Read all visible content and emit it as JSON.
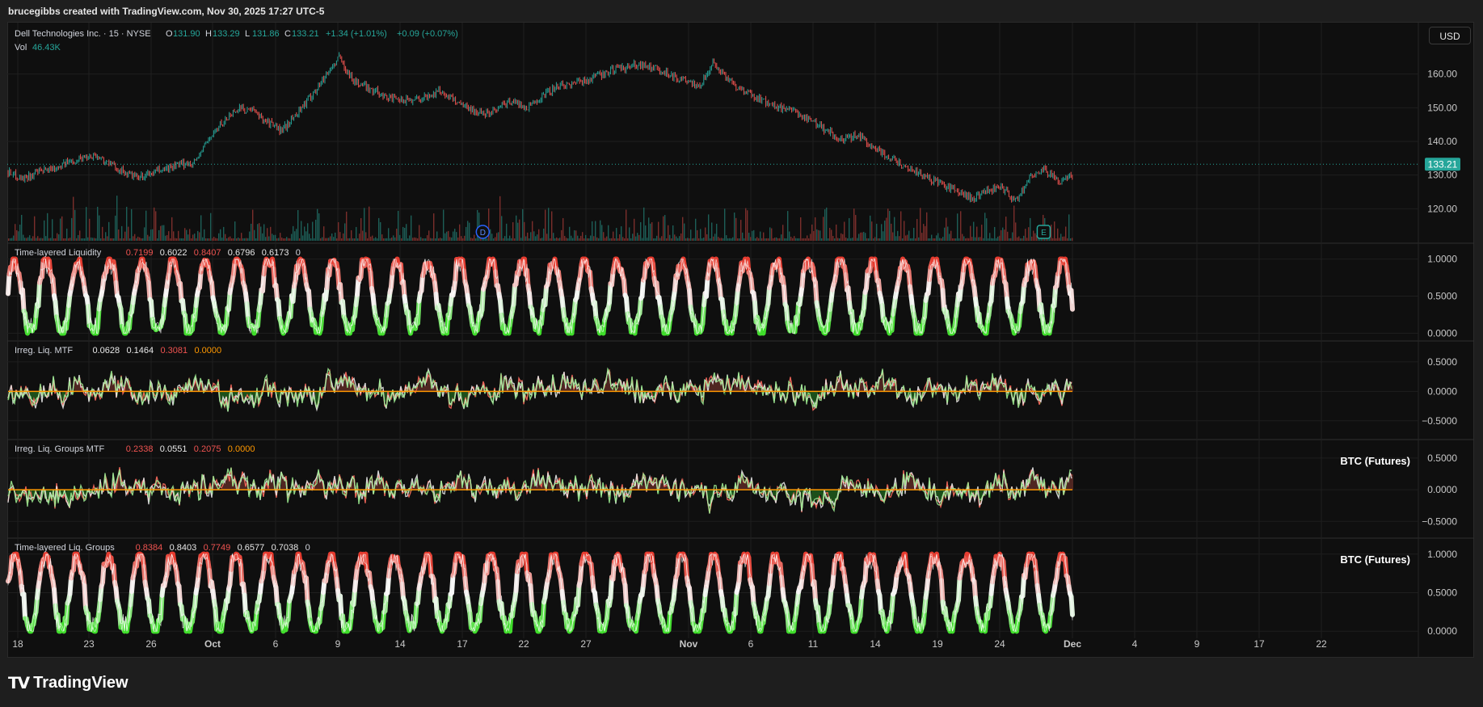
{
  "header": {
    "credit": "brucegibbs created with TradingView.com, Nov 30, 2025 17:27 UTC-5"
  },
  "currency_button": "USD",
  "footer_logo": "TradingView",
  "icons": {
    "logo": "tradingview-logo-icon"
  },
  "colors": {
    "bg": "#0f0f0f",
    "grid": "#1f1f1f",
    "up": "#26a69a",
    "down": "#ef5350",
    "green": "#3fdd2a",
    "red": "#e53a2e",
    "orange": "#ff9800",
    "white": "#e8e8e8",
    "price_line": "#26a69a"
  },
  "chart_data": [
    {
      "type": "candlestick",
      "title": "Dell Technologies Inc. · 15 · NYSE",
      "ohlc_legend": {
        "O": "131.90",
        "H": "133.29",
        "L": "131.86",
        "C": "133.21",
        "change": "+1.34 (+1.01%)",
        "after": "+0.09 (+0.07%)"
      },
      "volume_label": "Vol",
      "volume_value": "46.43K",
      "last_price": "133.21",
      "y_ticks": [
        "160.00",
        "150.00",
        "140.00",
        "130.00",
        "120.00"
      ],
      "ylim": [
        110,
        170
      ],
      "x_range": [
        "2025-09-18",
        "2025-12-01"
      ],
      "close_series": [
        [
          "2025-09-18",
          131
        ],
        [
          "2025-09-19",
          129
        ],
        [
          "2025-09-21",
          132
        ],
        [
          "2025-09-23",
          135
        ],
        [
          "2025-09-24",
          136
        ],
        [
          "2025-09-26",
          131
        ],
        [
          "2025-09-27",
          129
        ],
        [
          "2025-09-29",
          132
        ],
        [
          "2025-10-01",
          134
        ],
        [
          "2025-10-02",
          141
        ],
        [
          "2025-10-03",
          146
        ],
        [
          "2025-10-04",
          150
        ],
        [
          "2025-10-05",
          149
        ],
        [
          "2025-10-07",
          143
        ],
        [
          "2025-10-08",
          148
        ],
        [
          "2025-10-09",
          153
        ],
        [
          "2025-10-11",
          165
        ],
        [
          "2025-10-12",
          158
        ],
        [
          "2025-10-13",
          156
        ],
        [
          "2025-10-15",
          152
        ],
        [
          "2025-10-17",
          153
        ],
        [
          "2025-10-18",
          155
        ],
        [
          "2025-10-20",
          150
        ],
        [
          "2025-10-21",
          148
        ],
        [
          "2025-10-23",
          152
        ],
        [
          "2025-10-24",
          150
        ],
        [
          "2025-10-26",
          156
        ],
        [
          "2025-10-28",
          158
        ],
        [
          "2025-10-30",
          161
        ],
        [
          "2025-11-01",
          163
        ],
        [
          "2025-11-03",
          160
        ],
        [
          "2025-11-04",
          158
        ],
        [
          "2025-11-05",
          156
        ],
        [
          "2025-11-06",
          163
        ],
        [
          "2025-11-07",
          159
        ],
        [
          "2025-11-08",
          155
        ],
        [
          "2025-11-10",
          151
        ],
        [
          "2025-11-12",
          148
        ],
        [
          "2025-11-13",
          146
        ],
        [
          "2025-11-15",
          140
        ],
        [
          "2025-11-16",
          142
        ],
        [
          "2025-11-18",
          136
        ],
        [
          "2025-11-20",
          131
        ],
        [
          "2025-11-22",
          127
        ],
        [
          "2025-11-23",
          125
        ],
        [
          "2025-11-24",
          123
        ],
        [
          "2025-11-26",
          127
        ],
        [
          "2025-11-27",
          122
        ],
        [
          "2025-11-28",
          129
        ],
        [
          "2025-11-29",
          132
        ],
        [
          "2025-11-30",
          128
        ],
        [
          "2025-12-01",
          130
        ],
        [
          "2025-12-02",
          127
        ],
        [
          "2025-12-03",
          129
        ],
        [
          "2025-12-04",
          134
        ],
        [
          "2025-12-05",
          133
        ]
      ],
      "event_markers": [
        {
          "date": "2025-10-21",
          "label": "D"
        },
        {
          "date": "2025-11-29",
          "label": "E"
        }
      ]
    },
    {
      "type": "oscillator",
      "title": "Time-layered Liquidity",
      "values": [
        "0.7199",
        "0.6022",
        "0.8407",
        "0.6796",
        "0.6173"
      ],
      "value_colors": [
        "#ef5350",
        "#e8e8e8",
        "#ef5350",
        "#e8e8e8",
        "#e8e8e8"
      ],
      "suffix": "0",
      "y_ticks": [
        "1.0000",
        "0.5000",
        "0.0000"
      ],
      "ylim": [
        -0.05,
        1.05
      ]
    },
    {
      "type": "oscillator",
      "title": "Irreg. Liq. MTF",
      "values": [
        "0.0628",
        "0.1464",
        "0.3081",
        "0.0000"
      ],
      "value_colors": [
        "#e8e8e8",
        "#e8e8e8",
        "#ef5350",
        "#ff9800"
      ],
      "y_ticks": [
        "0.5000",
        "0.0000",
        "−0.5000"
      ],
      "ylim": [
        -0.75,
        0.65
      ]
    },
    {
      "type": "oscillator",
      "title": "Irreg. Liq. Groups MTF",
      "values": [
        "0.2338",
        "0.0551",
        "0.2075",
        "0.0000"
      ],
      "value_colors": [
        "#ef5350",
        "#e8e8e8",
        "#ef5350",
        "#ff9800"
      ],
      "badge": "BTC (Futures)",
      "y_ticks": [
        "0.5000",
        "0.0000",
        "−0.5000"
      ],
      "ylim": [
        -0.7,
        0.6
      ]
    },
    {
      "type": "oscillator",
      "title": "Time-layered Liq. Groups",
      "values": [
        "0.8384",
        "0.8403",
        "0.7749",
        "0.6577",
        "0.7038"
      ],
      "value_colors": [
        "#ef5350",
        "#e8e8e8",
        "#ef5350",
        "#e8e8e8",
        "#e8e8e8"
      ],
      "suffix": "0",
      "badge": "BTC (Futures)",
      "y_ticks": [
        "1.0000",
        "0.5000",
        "0.0000"
      ],
      "ylim": [
        -0.05,
        1.05
      ]
    }
  ],
  "x_axis": {
    "ticks": [
      "18",
      "23",
      "26",
      "Oct",
      "6",
      "9",
      "14",
      "17",
      "22",
      "27",
      "Nov",
      "6",
      "11",
      "14",
      "19",
      "24",
      "Dec",
      "4",
      "9",
      "17",
      "22"
    ]
  }
}
